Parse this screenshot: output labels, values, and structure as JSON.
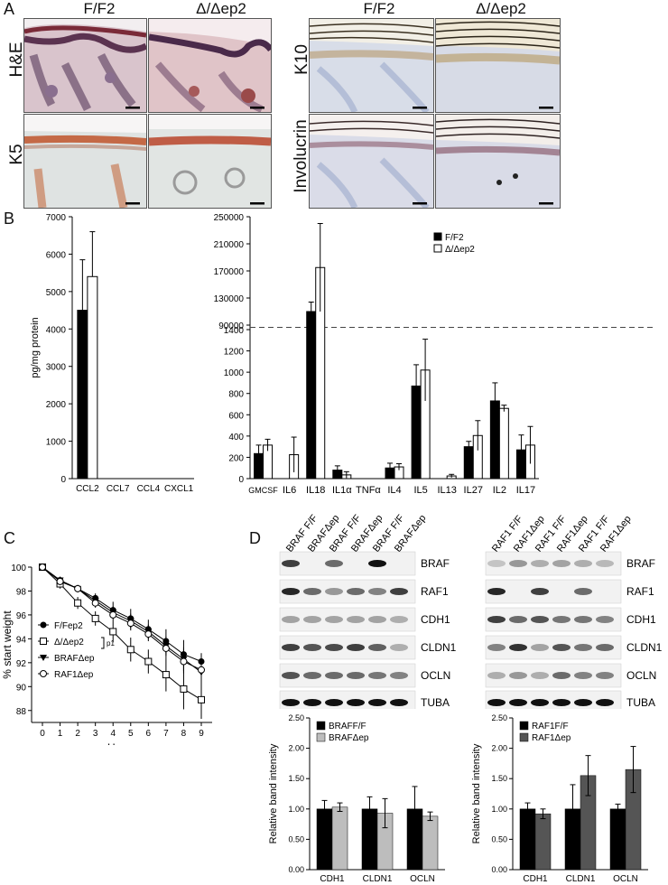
{
  "panel_letters": [
    "A",
    "B",
    "C",
    "D"
  ],
  "panelA": {
    "col_left": [
      "F/F2",
      "Δ/Δep2"
    ],
    "col_right": [
      "F/F2",
      "Δ/Δep2"
    ],
    "rows_left": [
      "H&E",
      "K5"
    ],
    "rows_right": [
      "K10",
      "Involucrin"
    ]
  },
  "chart_data": [
    {
      "id": "B-left",
      "type": "bar",
      "categories": [
        "CCL2",
        "CCL7",
        "CCL4",
        "CXCL1"
      ],
      "series": [
        {
          "name": "F/F2",
          "values": [
            4500,
            0,
            0,
            0
          ],
          "errors": [
            1350,
            0,
            0,
            0
          ]
        },
        {
          "name": "Δ/Δep2",
          "values": [
            5400,
            0,
            0,
            0
          ],
          "errors": [
            1200,
            0,
            0,
            0
          ]
        }
      ],
      "ylabel": "pg/mg protein",
      "ylim": [
        0,
        7000
      ],
      "yticks": [
        0,
        1000,
        2000,
        3000,
        4000,
        5000,
        6000,
        7000
      ]
    },
    {
      "id": "B-right",
      "type": "bar",
      "categories": [
        "GMCSF",
        "IL6",
        "IL18",
        "IL1α",
        "TNFα",
        "IL4",
        "IL5",
        "IL13",
        "IL27",
        "IL2",
        "IL17"
      ],
      "series": [
        {
          "name": "F/F2",
          "values": [
            235,
            0,
            110000,
            80,
            0,
            100,
            870,
            0,
            300,
            730,
            270
          ],
          "errors": [
            80,
            0,
            14000,
            40,
            0,
            45,
            200,
            0,
            50,
            170,
            140
          ]
        },
        {
          "name": "Δ/Δep2",
          "values": [
            315,
            225,
            175000,
            35,
            0,
            110,
            1020,
            25,
            405,
            660,
            315
          ],
          "errors": [
            55,
            165,
            65000,
            30,
            0,
            30,
            290,
            15,
            140,
            30,
            175
          ]
        }
      ],
      "yticks_lower": [
        0,
        200,
        400,
        600,
        800,
        1000,
        1200,
        1400
      ],
      "yticks_upper": [
        90000,
        130000,
        170000,
        210000,
        250000
      ],
      "axis_break": "1400 / 90000",
      "legend": [
        "F/F2",
        "Δ/Δep2"
      ]
    },
    {
      "id": "C",
      "type": "line",
      "x": [
        0,
        1,
        2,
        3,
        4,
        5,
        6,
        7,
        8,
        9
      ],
      "series": [
        {
          "name": "F/Fep2",
          "marker": "circle-filled",
          "values": [
            100,
            98.9,
            98.2,
            97.4,
            96.4,
            95.7,
            94.8,
            93.8,
            92.7,
            92.1
          ],
          "errors": [
            0.1,
            0.3,
            0.3,
            0.4,
            0.7,
            0.8,
            0.8,
            1.0,
            1.2,
            0.7
          ]
        },
        {
          "name": "Δ/Δep2",
          "marker": "square-open",
          "values": [
            100,
            98.6,
            97.0,
            95.7,
            94.6,
            93.1,
            92.1,
            91.0,
            89.8,
            88.9
          ],
          "errors": [
            0.1,
            0.4,
            0.5,
            0.6,
            0.9,
            1.0,
            1.0,
            1.4,
            1.7,
            1.6
          ]
        },
        {
          "name": "BRAFΔep",
          "marker": "triangle-filled",
          "values": [
            100,
            98.9,
            98.2,
            97.2,
            96.2,
            95.5,
            94.6,
            93.4,
            92.3,
            91.2
          ],
          "errors": [
            0.1,
            0.3,
            0.3,
            0.4,
            0.5,
            0.6,
            0.6,
            0.8,
            1.0,
            1.2
          ]
        },
        {
          "name": "RAF1Δep",
          "marker": "circle-open",
          "values": [
            100,
            98.8,
            98.2,
            97.0,
            96.0,
            95.3,
            94.4,
            93.2,
            92.1,
            91.4
          ],
          "errors": [
            0.1,
            0.3,
            0.3,
            0.4,
            0.5,
            0.6,
            0.6,
            0.8,
            1.0,
            1.2
          ]
        }
      ],
      "xlabel": "Hours",
      "ylabel": "% start weight",
      "ylim": [
        87,
        100
      ],
      "yticks": [
        88,
        90,
        92,
        94,
        96,
        98,
        100
      ],
      "annotation": "p1"
    },
    {
      "id": "D-left-bars",
      "type": "bar",
      "categories": [
        "CDH1",
        "CLDN1",
        "OCLN"
      ],
      "series": [
        {
          "name": "BRAFF/F",
          "color": "#000000",
          "values": [
            1.0,
            1.0,
            1.0
          ],
          "errors": [
            0.14,
            0.2,
            0.37
          ]
        },
        {
          "name": "BRAFΔep",
          "color": "#bdbdbd",
          "values": [
            1.03,
            0.93,
            0.88
          ],
          "errors": [
            0.07,
            0.24,
            0.07
          ]
        }
      ],
      "ylabel": "Relative band intensity",
      "ylim": [
        0,
        2.5
      ],
      "yticks": [
        "0.00",
        "0.50",
        "1.00",
        "1.50",
        "2.00",
        "2.50"
      ]
    },
    {
      "id": "D-right-bars",
      "type": "bar",
      "categories": [
        "CDH1",
        "CLDN1",
        "OCLN"
      ],
      "series": [
        {
          "name": "RAF1F/F",
          "color": "#000000",
          "values": [
            1.0,
            1.0,
            1.0
          ],
          "errors": [
            0.1,
            0.4,
            0.08
          ]
        },
        {
          "name": "RAF1Δep",
          "color": "#555555",
          "values": [
            0.92,
            1.55,
            1.65
          ],
          "errors": [
            0.08,
            0.33,
            0.38
          ]
        }
      ],
      "ylabel": "Relative band intensity",
      "ylim": [
        0,
        2.5
      ],
      "yticks": [
        "0.00",
        "0.50",
        "1.00",
        "1.50",
        "2.00",
        "2.50"
      ]
    }
  ],
  "panelD": {
    "left_lanes": [
      "BRAF F/F",
      "BRAFΔep",
      "BRAF F/F",
      "BRAFΔep",
      "BRAF F/F",
      "BRAFΔep"
    ],
    "right_lanes": [
      "RAF1 F/F",
      "RAF1Δep",
      "RAF1 F/F",
      "RAF1Δep",
      "RAF1 F/F",
      "RAF1Δep"
    ],
    "blot_rows": [
      "BRAF",
      "RAF1",
      "CDH1",
      "CLDN1",
      "OCLN",
      "TUBA"
    ]
  }
}
